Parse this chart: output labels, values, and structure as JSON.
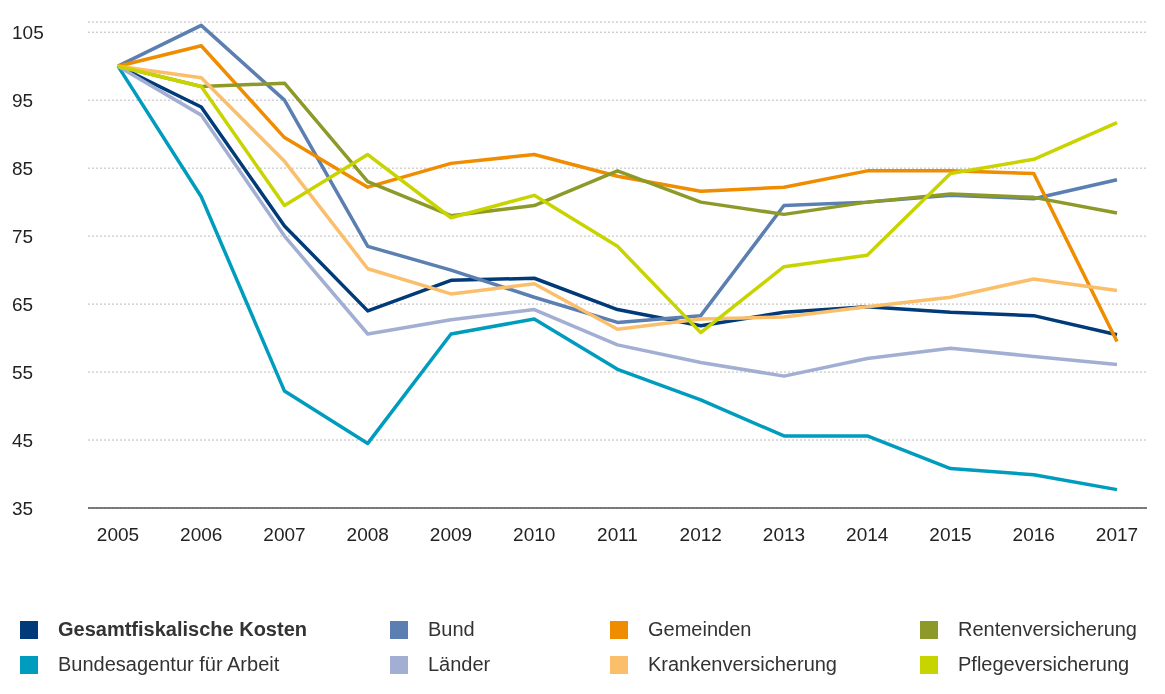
{
  "chart_data": {
    "type": "line",
    "categories": [
      "2005",
      "2006",
      "2007",
      "2008",
      "2009",
      "2010",
      "2011",
      "2012",
      "2013",
      "2014",
      "2015",
      "2016",
      "2017"
    ],
    "ylim": [
      35,
      106.5
    ],
    "yticks": [
      35,
      45,
      55,
      65,
      75,
      85,
      95,
      105
    ],
    "grid": "y",
    "legend": "bottom",
    "marker": "none",
    "line_style": "solid",
    "series": [
      {
        "name": "Gesamtfiskalische Kosten",
        "color": "#003a78",
        "values": [
          100,
          94,
          76.5,
          64,
          68.5,
          68.8,
          64.2,
          61.8,
          63.8,
          64.6,
          63.8,
          63.3,
          60.5
        ]
      },
      {
        "name": "Bund",
        "color": "#5a7fb0",
        "values": [
          100,
          106,
          95,
          73.5,
          70,
          66,
          62.3,
          63.3,
          79.5,
          80,
          81,
          80.5,
          83.3
        ]
      },
      {
        "name": "Gemeinden",
        "color": "#f08c00",
        "values": [
          100,
          103,
          89.5,
          82.2,
          85.7,
          87,
          83.8,
          81.6,
          82.2,
          84.6,
          84.6,
          84.2,
          59.5
        ]
      },
      {
        "name": "Rentenversicherung",
        "color": "#8d9a2a",
        "values": [
          100,
          97,
          97.5,
          83,
          78,
          79.5,
          84.6,
          80,
          78.2,
          80,
          81.2,
          80.7,
          78.4
        ]
      },
      {
        "name": "Bundesagentur für Arbeit",
        "color": "#009cbe",
        "values": [
          100,
          80.8,
          52.2,
          44.5,
          60.6,
          62.8,
          55.4,
          50.9,
          45.6,
          45.6,
          40.8,
          39.9,
          37.7
        ]
      },
      {
        "name": "Länder",
        "color": "#a3aed3",
        "values": [
          100,
          92.8,
          75,
          60.6,
          62.7,
          64.2,
          59,
          56.4,
          54.4,
          57,
          58.5,
          57.3,
          56.1
        ]
      },
      {
        "name": "Krankenversicherung",
        "color": "#fbbf6c",
        "values": [
          100,
          98.3,
          86,
          70.2,
          66.5,
          68,
          61.3,
          62.8,
          63.1,
          64.6,
          66,
          68.7,
          67
        ]
      },
      {
        "name": "Pflegeversicherung",
        "color": "#c8d400",
        "values": [
          100,
          97,
          79.5,
          87,
          77.7,
          81,
          73.5,
          60.8,
          70.5,
          72.2,
          84.2,
          86.3,
          91.7
        ]
      }
    ]
  }
}
